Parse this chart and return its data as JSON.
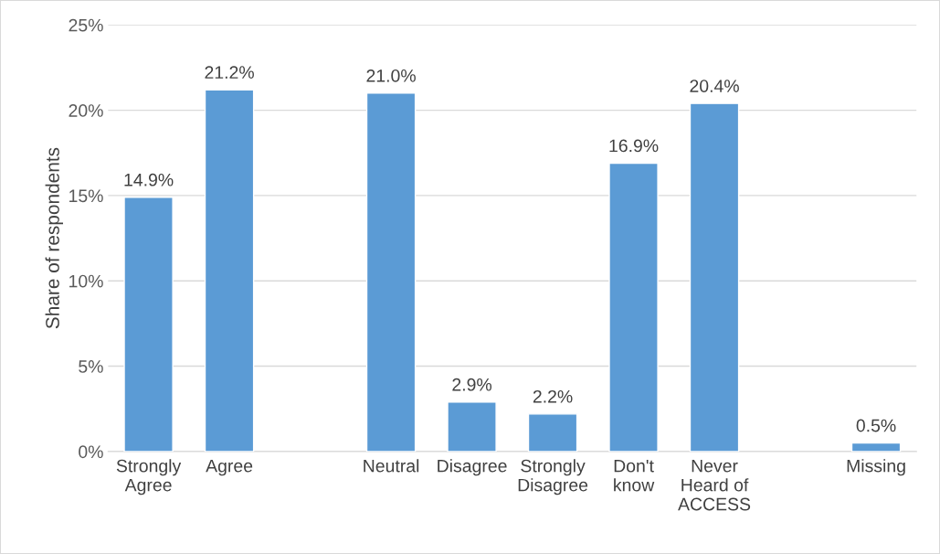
{
  "chart_data": {
    "type": "bar",
    "ylabel": "Share of respondents",
    "categories": [
      "Strongly\nAgree",
      "Agree",
      null,
      "Neutral",
      "Disagree",
      "Strongly\nDisagree",
      "Don't\nknow",
      "Never\nHeard of\nACCESS",
      null,
      "Missing"
    ],
    "values": [
      14.9,
      21.2,
      null,
      21.0,
      2.9,
      2.2,
      16.9,
      20.4,
      null,
      0.5
    ],
    "value_labels": [
      "14.9%",
      "21.2%",
      null,
      "21.0%",
      "2.9%",
      "2.2%",
      "16.9%",
      "20.4%",
      null,
      "0.5%"
    ],
    "color": "#5b9bd5",
    "ylim": [
      0,
      25
    ],
    "yticks": [
      {
        "value": 0,
        "label": "0%"
      },
      {
        "value": 5,
        "label": "5%"
      },
      {
        "value": 10,
        "label": "10%"
      },
      {
        "value": 15,
        "label": "15%"
      },
      {
        "value": 20,
        "label": "20%"
      },
      {
        "value": 25,
        "label": "25%"
      }
    ],
    "grid": "y",
    "legend": false
  }
}
